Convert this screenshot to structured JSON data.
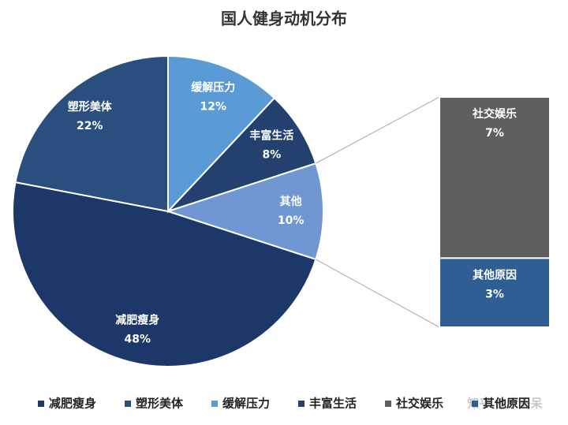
{
  "chart_data": {
    "type": "pie_of_bar",
    "title": "国人健身动机分布",
    "categories": [
      "减肥瘦身",
      "塑形美体",
      "缓解压力",
      "丰富生活"
    ],
    "values": [
      48,
      22,
      12,
      8
    ],
    "value_labels": [
      "48%",
      "22%",
      "12%",
      "8%"
    ],
    "colors": [
      "#1d3768",
      "#2a4f7e",
      "#5b9bd5",
      "#23406f"
    ],
    "other": {
      "name": "其他",
      "value": 10,
      "value_label": "10%",
      "color": "#7197d3",
      "categories": [
        "社交娱乐",
        "其他原因"
      ],
      "values": [
        7,
        3
      ],
      "value_labels": [
        "7%",
        "3%"
      ],
      "colors": [
        "#5f5f5f",
        "#2e5e93"
      ]
    },
    "legend": "bottom",
    "watermark": "知乎 @大头呆"
  }
}
